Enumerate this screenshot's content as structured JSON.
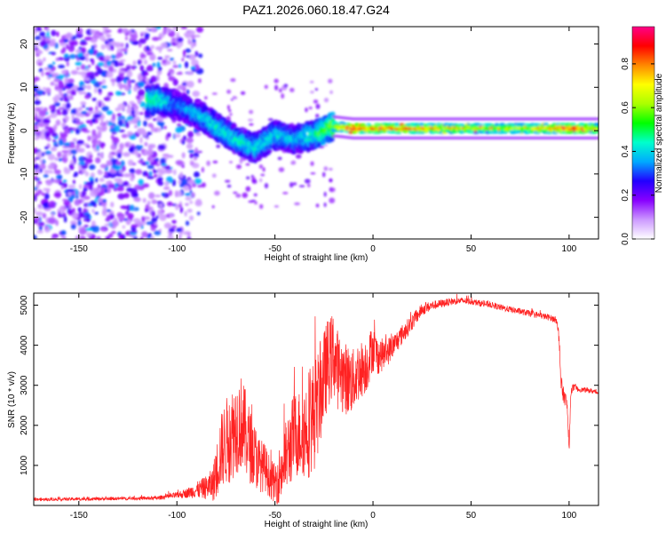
{
  "chart_data": [
    {
      "type": "heatmap",
      "title": "PAZ1.2026.060.18.47.G24",
      "xlabel": "Height of straight line (km)",
      "ylabel": "Frequency (Hz)",
      "xlim": [
        -173,
        115
      ],
      "ylim": [
        -25,
        24
      ],
      "xticks": [
        -150,
        -100,
        -50,
        0,
        50,
        100
      ],
      "xtick_labels": [
        "-150",
        "-100",
        "-50",
        "0",
        "50",
        "100"
      ],
      "yticks": [
        -20,
        -10,
        0,
        10,
        20
      ],
      "ytick_labels": [
        "-20",
        "-10",
        "0",
        "10",
        "20"
      ],
      "colorbar": {
        "label": "Normalized spectral amplitude",
        "range": [
          0,
          0.97
        ],
        "ticks": [
          0.0,
          0.2,
          0.4,
          0.6,
          0.8
        ],
        "tick_labels": [
          "0.0",
          "0.2",
          "0.4",
          "0.6",
          "0.8"
        ],
        "colors": [
          "#ffffff",
          "#cc99ff",
          "#8800ff",
          "#2200ff",
          "#00aaff",
          "#00ffcc",
          "#00ff00",
          "#aaff00",
          "#ffff00",
          "#ff8800",
          "#ff0000",
          "#ff0088"
        ]
      },
      "ridge": {
        "x": [
          -110,
          -100,
          -90,
          -80,
          -70,
          -60,
          -50,
          -40,
          -30,
          -20,
          -10,
          0,
          20,
          50,
          80,
          100,
          115
        ],
        "frequency": [
          7,
          6,
          4,
          1,
          -2,
          -4,
          -1,
          -2,
          -1,
          1,
          0.5,
          0.5,
          0.5,
          0.5,
          0.5,
          0.5,
          0.5
        ],
        "peak_amplitude": [
          0.5,
          0.35,
          0.4,
          0.45,
          0.45,
          0.45,
          0.45,
          0.4,
          0.5,
          0.65,
          0.95,
          0.85,
          0.85,
          0.7,
          0.7,
          0.9,
          0.75
        ]
      },
      "noise_region_x": [
        -173,
        -88
      ],
      "noise_freq_range": [
        -25,
        24
      ]
    },
    {
      "type": "line",
      "xlabel": "Height of straight line (km)",
      "ylabel": "SNR (10 * v/v)",
      "xlim": [
        -173,
        115
      ],
      "ylim": [
        0,
        5300
      ],
      "xticks": [
        -150,
        -100,
        -50,
        0,
        50,
        100
      ],
      "xtick_labels": [
        "-150",
        "-100",
        "-50",
        "0",
        "50",
        "100"
      ],
      "yticks": [
        1000,
        2000,
        3000,
        4000,
        5000
      ],
      "ytick_labels": [
        "1000",
        "2000",
        "3000",
        "4000",
        "5000"
      ],
      "color": "#ff2222",
      "series": [
        {
          "name": "SNR",
          "x": [
            -173,
            -160,
            -140,
            -120,
            -110,
            -105,
            -100,
            -95,
            -90,
            -85,
            -82,
            -80,
            -78,
            -75,
            -72,
            -70,
            -67,
            -65,
            -62,
            -60,
            -58,
            -55,
            -52,
            -50,
            -48,
            -45,
            -43,
            -40,
            -38,
            -35,
            -33,
            -30,
            -28,
            -25,
            -23,
            -22,
            -20,
            -18,
            -15,
            -12,
            -10,
            -8,
            -5,
            -3,
            -1,
            0,
            2,
            5,
            8,
            10,
            15,
            20,
            25,
            30,
            35,
            40,
            45,
            50,
            55,
            60,
            65,
            70,
            75,
            80,
            85,
            90,
            93,
            94,
            95,
            96,
            97,
            98,
            99,
            100,
            101,
            102,
            105,
            110,
            115
          ],
          "y": [
            150,
            160,
            170,
            180,
            190,
            230,
            260,
            320,
            400,
            480,
            560,
            850,
            1400,
            1700,
            1900,
            2100,
            2200,
            1900,
            1500,
            1300,
            1100,
            1000,
            700,
            600,
            800,
            1200,
            1500,
            1900,
            1900,
            2000,
            2200,
            2400,
            2700,
            3300,
            3700,
            3700,
            3900,
            3500,
            3300,
            3200,
            3200,
            3400,
            3500,
            3600,
            3900,
            4000,
            3800,
            3800,
            3900,
            4000,
            4300,
            4600,
            4900,
            5000,
            5050,
            5100,
            5120,
            5100,
            5050,
            5020,
            4950,
            4900,
            4850,
            4800,
            4750,
            4700,
            4650,
            4600,
            4000,
            3000,
            2800,
            2700,
            2500,
            1400,
            2900,
            2950,
            2900,
            2880,
            2820
          ],
          "noise_amplitude": [
            40,
            40,
            40,
            40,
            50,
            60,
            80,
            120,
            200,
            300,
            400,
            700,
            900,
            1100,
            1200,
            1200,
            1200,
            1100,
            900,
            800,
            700,
            600,
            500,
            500,
            700,
            900,
            1000,
            1100,
            1100,
            1200,
            1400,
            1400,
            1300,
            1200,
            1100,
            1100,
            1100,
            1000,
            900,
            900,
            800,
            800,
            700,
            700,
            600,
            600,
            500,
            400,
            350,
            300,
            250,
            200,
            150,
            120,
            100,
            90,
            80,
            80,
            80,
            80,
            80,
            80,
            80,
            80,
            80,
            80,
            80,
            80,
            300,
            300,
            200,
            200,
            150,
            150,
            100,
            100,
            60,
            60,
            60
          ]
        }
      ]
    }
  ]
}
